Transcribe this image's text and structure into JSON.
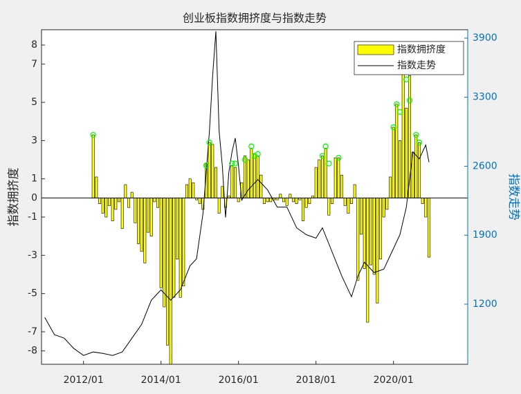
{
  "chart_data": {
    "type": "bar",
    "title": "创业板指数拥挤度与指数走势",
    "ylabel": "指数拥挤度",
    "y2label": "指数走势",
    "xlim": [
      "2010/12",
      "2021/12"
    ],
    "xticks": [
      "2012/01",
      "2014/01",
      "2016/01",
      "2018/01",
      "2020/01"
    ],
    "ylim": [
      -8.7,
      8.8
    ],
    "yticks": [
      -8,
      -7,
      -5,
      -3,
      -1,
      0,
      1,
      3,
      5,
      7,
      8
    ],
    "y2lim": [
      590,
      3985
    ],
    "y2ticks": [
      1200,
      1900,
      2600,
      3300,
      3900
    ],
    "y2color": "#0072bd",
    "legend": "top-right",
    "series": [
      {
        "name": "指数拥挤度",
        "type": "bar",
        "color": "#ffff00",
        "x": [
          "2012/04",
          "2012/05",
          "2012/06",
          "2012/07",
          "2012/08",
          "2012/09",
          "2012/10",
          "2012/11",
          "2012/12",
          "2013/01",
          "2013/02",
          "2013/03",
          "2013/04",
          "2013/05",
          "2013/06",
          "2013/07",
          "2013/08",
          "2013/09",
          "2013/10",
          "2013/11",
          "2013/12",
          "2014/01",
          "2014/02",
          "2014/03",
          "2014/04",
          "2014/05",
          "2014/06",
          "2014/07",
          "2014/08",
          "2014/09",
          "2014/10",
          "2014/11",
          "2014/12",
          "2015/01",
          "2015/02",
          "2015/03",
          "2015/04",
          "2015/05",
          "2015/06",
          "2015/07",
          "2015/08",
          "2015/09",
          "2015/10",
          "2015/11",
          "2015/12",
          "2016/01",
          "2016/02",
          "2016/03",
          "2016/04",
          "2016/05",
          "2016/06",
          "2016/07",
          "2016/08",
          "2016/09",
          "2016/10",
          "2016/11",
          "2016/12",
          "2017/01",
          "2017/02",
          "2017/03",
          "2017/04",
          "2017/05",
          "2017/06",
          "2017/07",
          "2017/08",
          "2017/09",
          "2017/10",
          "2017/11",
          "2017/12",
          "2018/01",
          "2018/02",
          "2018/03",
          "2018/04",
          "2018/05",
          "2018/06",
          "2018/07",
          "2018/08",
          "2018/09",
          "2018/10",
          "2018/11",
          "2018/12",
          "2019/01",
          "2019/02",
          "2019/03",
          "2019/04",
          "2019/05",
          "2019/06",
          "2019/07",
          "2019/08",
          "2019/09",
          "2019/10",
          "2019/11",
          "2019/12",
          "2020/01",
          "2020/02",
          "2020/03",
          "2020/04",
          "2020/05",
          "2020/06",
          "2020/07",
          "2020/08",
          "2020/09",
          "2020/10",
          "2020/11",
          "2020/12"
        ],
        "values": [
          3.3,
          1.1,
          -0.3,
          -0.8,
          -1.0,
          -0.4,
          -1.2,
          -0.6,
          -0.2,
          -1.6,
          0.7,
          -0.5,
          0.3,
          -1.3,
          -2.4,
          -2.8,
          -3.4,
          -1.8,
          -2.0,
          -0.2,
          -0.5,
          -4.7,
          -5.7,
          -7.7,
          -8.7,
          -5.2,
          -3.2,
          -5.2,
          -4.6,
          0.7,
          1.0,
          0.8,
          -0.1,
          -0.3,
          -0.6,
          1.8,
          2.9,
          2.8,
          1.6,
          -0.8,
          0.6,
          -0.5,
          0.1,
          1.7,
          1.6,
          -0.2,
          0.8,
          2.2,
          2.0,
          2.6,
          2.3,
          2.2,
          1.2,
          -0.3,
          -0.2,
          -0.2,
          -0.1,
          -0.1,
          0.2,
          -0.2,
          -0.4,
          0.2,
          -0.2,
          -0.3,
          -0.1,
          -1.2,
          -0.5,
          -0.3,
          0.1,
          1.6,
          2.0,
          2.2,
          2.6,
          -0.9,
          -0.3,
          2.1,
          2.1,
          1.2,
          -0.4,
          -0.8,
          -0.3,
          0.7,
          -4.3,
          -1.9,
          -3.7,
          -6.5,
          -3.5,
          -4.0,
          -5.5,
          -3.2,
          -1.0,
          -0.6,
          1.1,
          3.7,
          4.9,
          3.0,
          6.5,
          4.7,
          6.4,
          2.4,
          3.3,
          2.9,
          -0.3,
          -1.0,
          -3.1
        ]
      },
      {
        "name": "指数走势",
        "type": "line",
        "color": "#000000",
        "axis": "y2",
        "x": [
          "2011/01",
          "2011/04",
          "2011/07",
          "2011/10",
          "2012/01",
          "2012/04",
          "2012/07",
          "2012/10",
          "2013/01",
          "2013/04",
          "2013/07",
          "2013/10",
          "2014/01",
          "2014/04",
          "2014/07",
          "2014/10",
          "2014/12",
          "2015/02",
          "2015/04",
          "2015/05",
          "2015/06",
          "2015/07",
          "2015/08",
          "2015/09",
          "2015/10",
          "2015/11",
          "2015/12",
          "2016/01",
          "2016/02",
          "2016/04",
          "2016/07",
          "2016/10",
          "2017/01",
          "2017/04",
          "2017/07",
          "2017/10",
          "2018/01",
          "2018/03",
          "2018/06",
          "2018/09",
          "2018/12",
          "2019/02",
          "2019/04",
          "2019/07",
          "2019/10",
          "2020/01",
          "2020/03",
          "2020/05",
          "2020/07",
          "2020/09",
          "2020/11",
          "2020/12"
        ],
        "values": [
          1065,
          890,
          855,
          750,
          680,
          715,
          700,
          680,
          715,
          855,
          995,
          1240,
          1345,
          1240,
          1345,
          1590,
          1660,
          2115,
          2955,
          3515,
          3970,
          2955,
          2605,
          2080,
          2535,
          2745,
          2885,
          2605,
          2255,
          2360,
          2465,
          2360,
          2185,
          2185,
          1975,
          1905,
          1870,
          1975,
          1730,
          1485,
          1275,
          1485,
          1625,
          1520,
          1555,
          1765,
          1905,
          2185,
          2745,
          2675,
          2815,
          2640
        ]
      }
    ],
    "markers": {
      "color": "#00ff00",
      "x": [
        "2012/04",
        "2015/03",
        "2015/04",
        "2015/11",
        "2015/12",
        "2016/03",
        "2016/05",
        "2016/06",
        "2016/07",
        "2018/03",
        "2018/04",
        "2018/05",
        "2018/08",
        "2020/01",
        "2020/02",
        "2020/03",
        "2020/05",
        "2020/06",
        "2020/08",
        "2020/09"
      ],
      "values": [
        3.3,
        1.7,
        2.9,
        1.8,
        1.8,
        2.0,
        2.7,
        2.2,
        2.3,
        2.2,
        2.7,
        1.8,
        2.1,
        3.7,
        4.9,
        4.5,
        6.2,
        5.1,
        3.3,
        2.9
      ]
    }
  }
}
